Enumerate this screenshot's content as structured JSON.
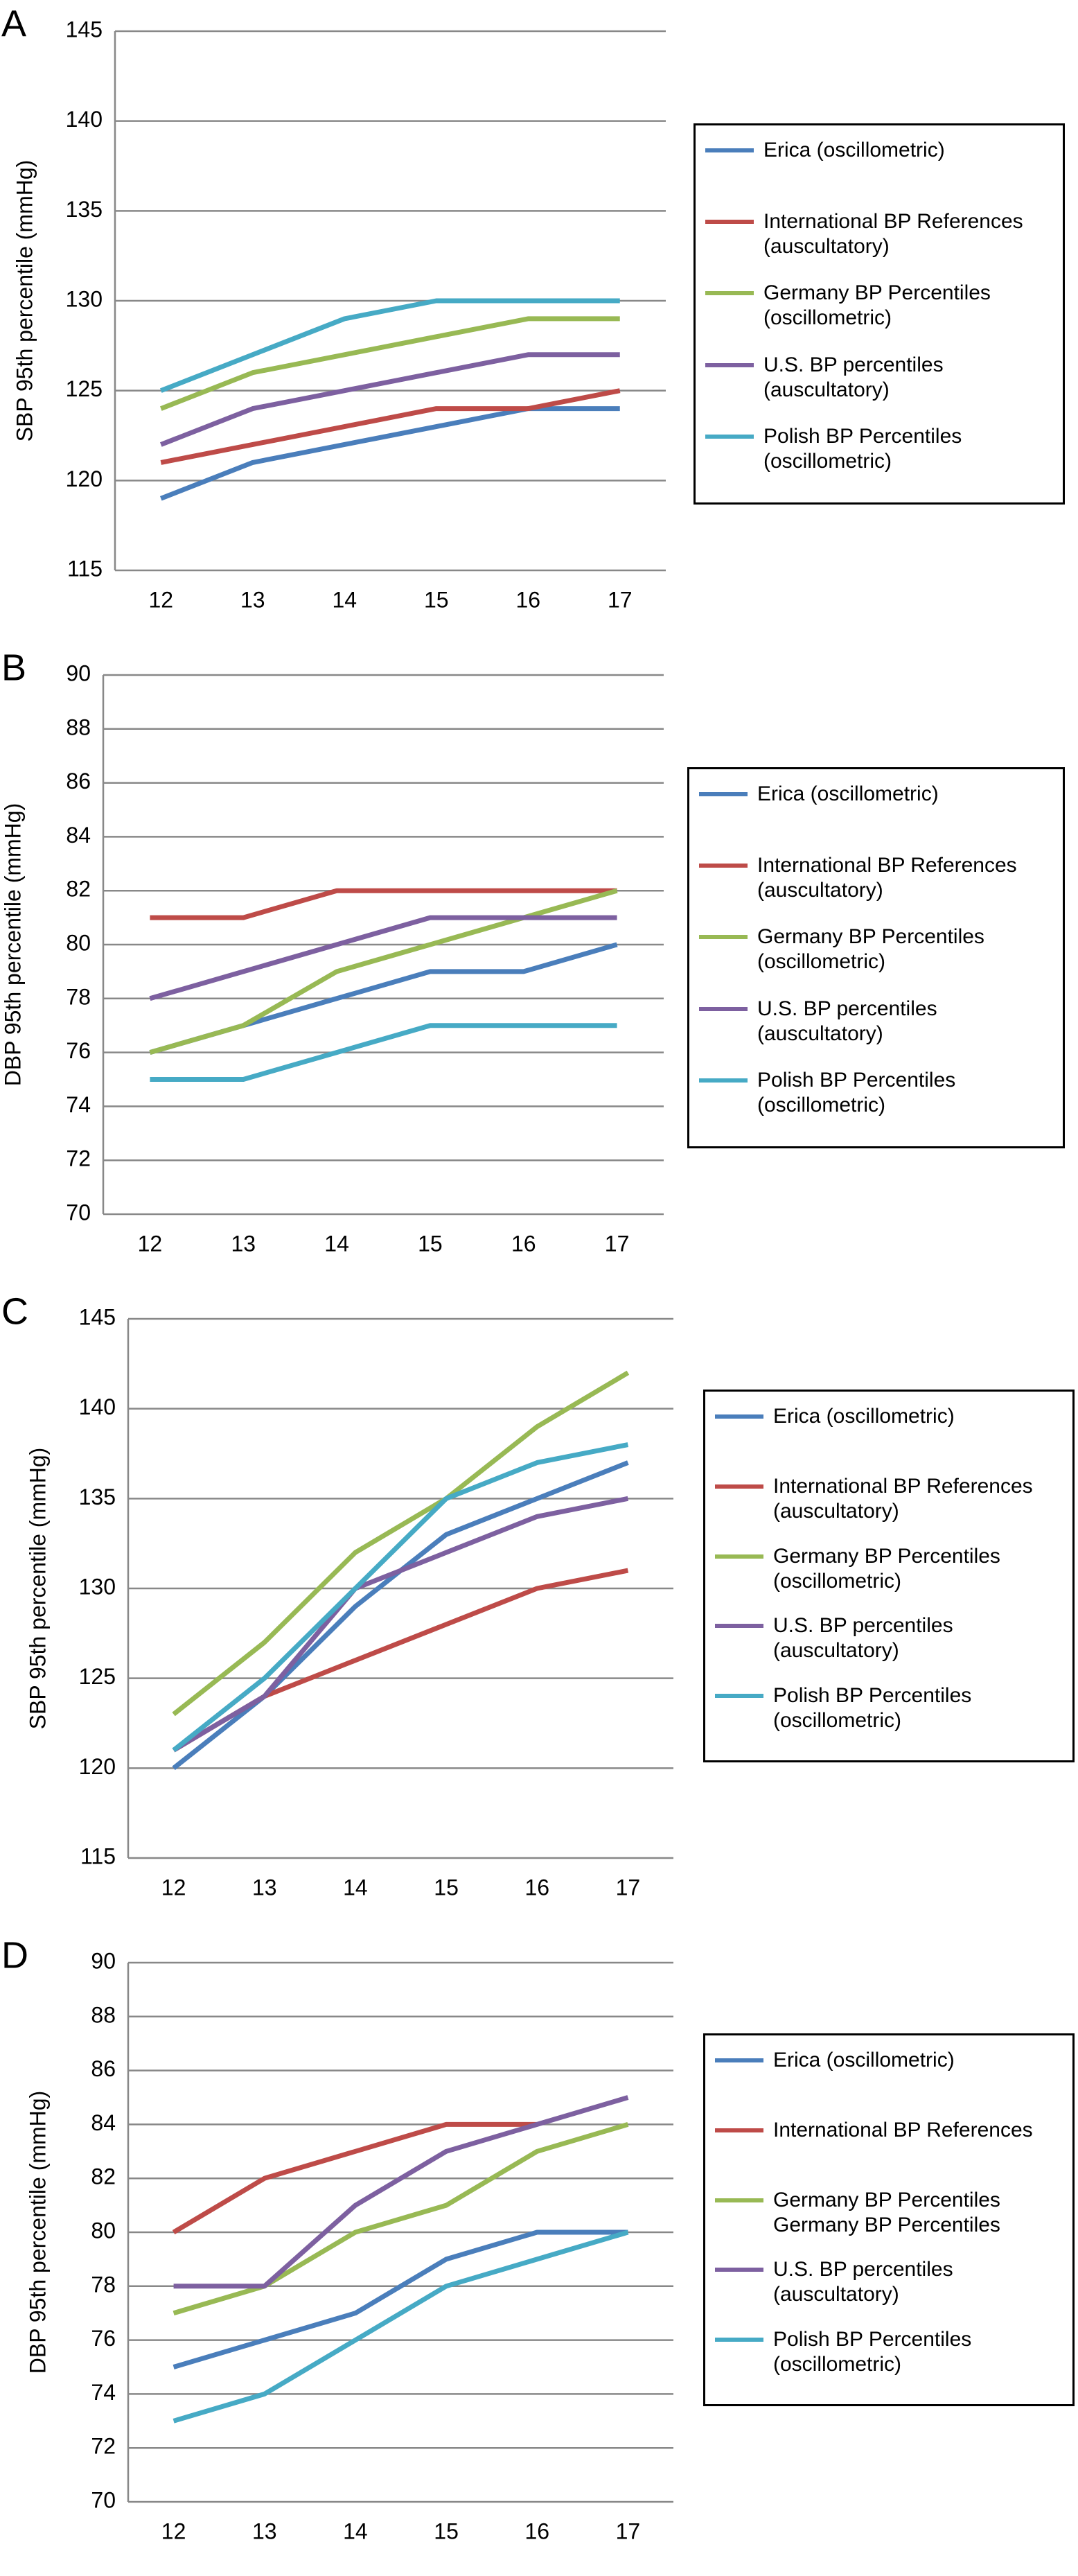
{
  "chart_data": [
    {
      "type": "line",
      "panel_label": "A",
      "y_label": "SBP 95th percentile (mmHg)",
      "categories": [
        "12",
        "13",
        "14",
        "15",
        "16",
        "17"
      ],
      "ylim": [
        115,
        145
      ],
      "yticks": [
        115,
        120,
        125,
        130,
        135,
        140,
        145
      ],
      "grid": true,
      "series": [
        {
          "name": "Erica (oscillometric)",
          "color": "#4a7ebb",
          "values": [
            119,
            121,
            122,
            123,
            124,
            124
          ]
        },
        {
          "name": "International BP References (auscultatory)",
          "color": "#be4b48",
          "values": [
            121,
            122,
            123,
            124,
            124,
            125
          ]
        },
        {
          "name": "Germany BP Percentiles (oscillometric)",
          "color": "#98b954",
          "values": [
            124,
            126,
            127,
            128,
            129,
            129
          ]
        },
        {
          "name": "U.S. BP percentiles (auscultatory)",
          "color": "#7d60a0",
          "values": [
            122,
            124,
            125,
            126,
            127,
            127
          ]
        },
        {
          "name": "Polish BP Percentiles (oscillometric)",
          "color": "#46aac5",
          "values": [
            125,
            127,
            129,
            130,
            130,
            130
          ]
        }
      ]
    },
    {
      "type": "line",
      "panel_label": "B",
      "y_label": "DBP 95th percentile (mmHg)",
      "categories": [
        "12",
        "13",
        "14",
        "15",
        "16",
        "17"
      ],
      "ylim": [
        70,
        90
      ],
      "yticks": [
        70,
        72,
        74,
        76,
        78,
        80,
        82,
        84,
        86,
        88,
        90
      ],
      "grid": true,
      "series": [
        {
          "name": "Erica (oscillometric)",
          "color": "#4a7ebb",
          "values": [
            76,
            77,
            78,
            79,
            79,
            80
          ]
        },
        {
          "name": "International BP References (auscultatory)",
          "color": "#be4b48",
          "values": [
            81,
            81,
            82,
            82,
            82,
            82
          ]
        },
        {
          "name": "Germany BP Percentiles (oscillometric)",
          "color": "#98b954",
          "values": [
            76,
            77,
            79,
            80,
            81,
            82
          ]
        },
        {
          "name": "U.S. BP percentiles (auscultatory)",
          "color": "#7d60a0",
          "values": [
            78,
            79,
            80,
            81,
            81,
            81
          ]
        },
        {
          "name": "Polish BP Percentiles (oscillometric)",
          "color": "#46aac5",
          "values": [
            75,
            75,
            76,
            77,
            77,
            77
          ]
        }
      ]
    },
    {
      "type": "line",
      "panel_label": "C",
      "y_label": "SBP 95th percentile (mmHg)",
      "categories": [
        "12",
        "13",
        "14",
        "15",
        "16",
        "17"
      ],
      "ylim": [
        115,
        145
      ],
      "yticks": [
        115,
        120,
        125,
        130,
        135,
        140,
        145
      ],
      "grid": true,
      "series": [
        {
          "name": "Erica (oscillometric)",
          "color": "#4a7ebb",
          "values": [
            120,
            124,
            129,
            133,
            135,
            137
          ]
        },
        {
          "name": "International BP References (auscultatory)",
          "color": "#be4b48",
          "values": [
            121,
            124,
            126,
            128,
            130,
            131
          ]
        },
        {
          "name": "Germany BP Percentiles (oscillometric)",
          "color": "#98b954",
          "values": [
            123,
            127,
            132,
            135,
            139,
            142
          ]
        },
        {
          "name": "U.S. BP percentiles (auscultatory)",
          "color": "#7d60a0",
          "values": [
            121,
            124,
            130,
            132,
            134,
            135
          ]
        },
        {
          "name": "Polish BP Percentiles (oscillometric)",
          "color": "#46aac5",
          "values": [
            121,
            125,
            130,
            135,
            137,
            138
          ]
        }
      ]
    },
    {
      "type": "line",
      "panel_label": "D",
      "y_label": "DBP 95th percentile (mmHg)",
      "categories": [
        "12",
        "13",
        "14",
        "15",
        "16",
        "17"
      ],
      "ylim": [
        70,
        90
      ],
      "yticks": [
        70,
        72,
        74,
        76,
        78,
        80,
        82,
        84,
        86,
        88,
        90
      ],
      "grid": true,
      "series": [
        {
          "name": "Erica (oscillometric)",
          "color": "#4a7ebb",
          "values": [
            75,
            76,
            77,
            79,
            80,
            80
          ]
        },
        {
          "name": "International BP References",
          "color": "#be4b48",
          "values": [
            80,
            82,
            83,
            84,
            84,
            null
          ]
        },
        {
          "name": "Germany BP Percentiles Germany BP Percentiles",
          "color": "#98b954",
          "values": [
            77,
            78,
            80,
            81,
            83,
            84
          ]
        },
        {
          "name": "U.S. BP percentiles (auscultatory)",
          "color": "#7d60a0",
          "values": [
            78,
            78,
            81,
            83,
            84,
            85
          ]
        },
        {
          "name": "Polish BP Percentiles (oscillometric)",
          "color": "#46aac5",
          "values": [
            73,
            74,
            76,
            78,
            79,
            80
          ]
        }
      ]
    }
  ]
}
